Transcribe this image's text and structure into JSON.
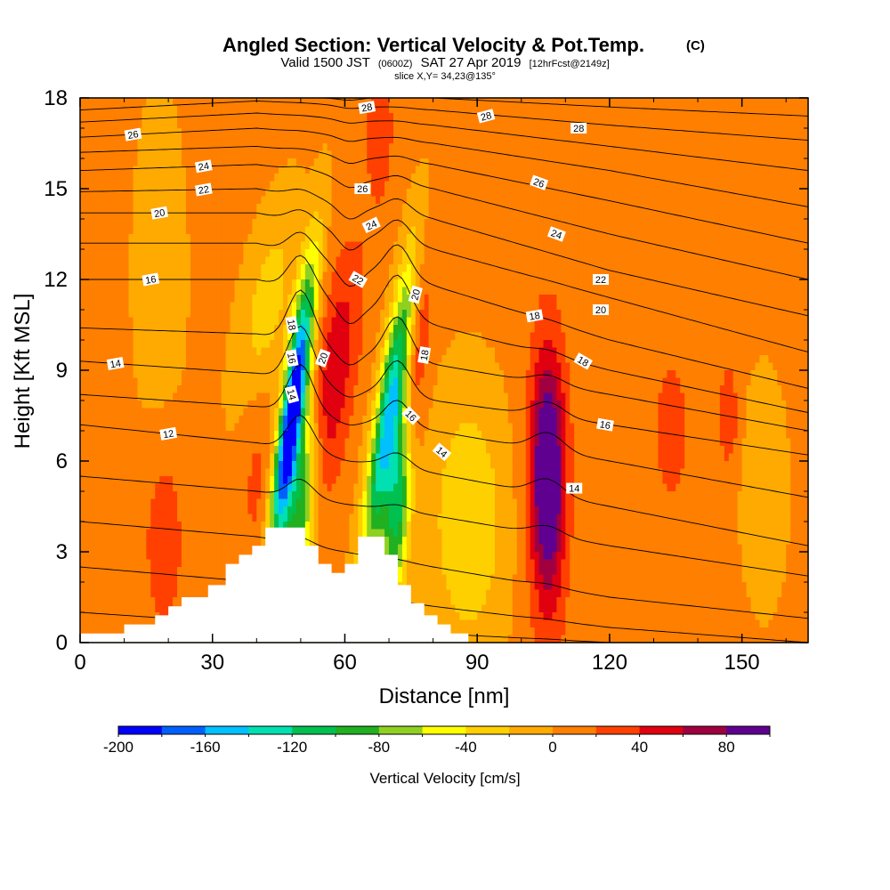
{
  "chart_data": {
    "type": "heatmap",
    "title": "Angled Section: Vertical Velocity & Pot.Temp.",
    "title_suffix": "(C)",
    "subtitle_parts": [
      "Valid 1500 JST",
      "(0600Z)",
      "SAT 27 Apr 2019",
      "[12hrFcst@2149z]"
    ],
    "slice_text": "slice X,Y= 34,23@135°",
    "xlabel": "Distance [nm]",
    "ylabel": "Height [Kft MSL]",
    "xlim": [
      0,
      165
    ],
    "ylim": [
      0,
      18
    ],
    "x_ticks": [
      0,
      30,
      60,
      90,
      120,
      150
    ],
    "y_ticks": [
      0,
      3,
      6,
      9,
      12,
      15,
      18
    ],
    "colorbar": {
      "label": "Vertical Velocity [cm/s]",
      "range": [
        -200,
        100
      ],
      "tick_values": [
        -200,
        -160,
        -120,
        -80,
        -40,
        0,
        40,
        80
      ],
      "colors": [
        "#0000ff",
        "#0060ff",
        "#00c0ff",
        "#00e0b0",
        "#00c050",
        "#20b020",
        "#90d020",
        "#ffff00",
        "#ffd000",
        "#ffaa00",
        "#ff7f00",
        "#ff4000",
        "#e00010",
        "#a00040",
        "#600090"
      ]
    },
    "background_velocity": 5,
    "velocity_cells": [
      {
        "x": 48,
        "y": 7.5,
        "sx": 1.8,
        "sy": 3.2,
        "slope": 0.22,
        "amp": -220
      },
      {
        "x": 50,
        "y": 4.5,
        "sx": 2.4,
        "sy": 2.5,
        "slope": 0.15,
        "amp": -110
      },
      {
        "x": 70,
        "y": 7.5,
        "sx": 2.2,
        "sy": 3.5,
        "slope": 0.25,
        "amp": -150
      },
      {
        "x": 72,
        "y": 4.5,
        "sx": 2.0,
        "sy": 2.2,
        "slope": 0.1,
        "amp": -120
      },
      {
        "x": 88,
        "y": 4.0,
        "sx": 6.0,
        "sy": 3.0,
        "slope": 0.0,
        "amp": -45
      },
      {
        "x": 42,
        "y": 11.0,
        "sx": 4.0,
        "sy": 2.5,
        "slope": 0.3,
        "amp": -35
      },
      {
        "x": 18,
        "y": 12.0,
        "sx": 4.0,
        "sy": 4.0,
        "slope": 0.0,
        "amp": -20
      },
      {
        "x": 57,
        "y": 8.5,
        "sx": 3.5,
        "sy": 3.0,
        "slope": 0.25,
        "amp": 55
      },
      {
        "x": 76,
        "y": 9.5,
        "sx": 2.0,
        "sy": 3.0,
        "slope": 0.15,
        "amp": 40
      },
      {
        "x": 106,
        "y": 5.5,
        "sx": 2.5,
        "sy": 2.5,
        "slope": 0.0,
        "amp": 95
      },
      {
        "x": 106,
        "y": 5.0,
        "sx": 3.6,
        "sy": 4.5,
        "slope": 0.0,
        "amp": 30
      },
      {
        "x": 19,
        "y": 3.5,
        "sx": 3.5,
        "sy": 2.5,
        "slope": 0.0,
        "amp": 28
      },
      {
        "x": 40,
        "y": 5.5,
        "sx": 3.0,
        "sy": 2.5,
        "slope": 0.0,
        "amp": 20
      },
      {
        "x": 134,
        "y": 7.0,
        "sx": 3.0,
        "sy": 2.0,
        "slope": 0.0,
        "amp": 25
      },
      {
        "x": 147,
        "y": 7.5,
        "sx": 1.5,
        "sy": 1.2,
        "slope": 0.0,
        "amp": 35
      },
      {
        "x": 68,
        "y": 17.0,
        "sx": 2.5,
        "sy": 2.0,
        "slope": 0.0,
        "amp": 25
      },
      {
        "x": 155,
        "y": 5.0,
        "sx": 4.0,
        "sy": 3.0,
        "slope": 0.0,
        "amp": -15
      }
    ],
    "terrain": [
      {
        "x": 0,
        "h": 0.3
      },
      {
        "x": 10,
        "h": 0.6
      },
      {
        "x": 17,
        "h": 0.9
      },
      {
        "x": 20,
        "h": 1.2
      },
      {
        "x": 23,
        "h": 1.5
      },
      {
        "x": 29,
        "h": 1.9
      },
      {
        "x": 33,
        "h": 2.6
      },
      {
        "x": 36,
        "h": 2.9
      },
      {
        "x": 39,
        "h": 3.2
      },
      {
        "x": 42,
        "h": 3.8
      },
      {
        "x": 51,
        "h": 3.2
      },
      {
        "x": 54,
        "h": 2.6
      },
      {
        "x": 57,
        "h": 2.3
      },
      {
        "x": 60,
        "h": 2.6
      },
      {
        "x": 63,
        "h": 3.5
      },
      {
        "x": 69,
        "h": 2.9
      },
      {
        "x": 72,
        "h": 1.9
      },
      {
        "x": 75,
        "h": 1.3
      },
      {
        "x": 78,
        "h": 0.9
      },
      {
        "x": 81,
        "h": 0.6
      },
      {
        "x": 84,
        "h": 0.3
      },
      {
        "x": 88,
        "h": 0.0
      },
      {
        "x": 165,
        "h": 0.0
      }
    ],
    "theta_lines": [
      {
        "ys": [
          1.0,
          0.6,
          0.3,
          0.0,
          0.0
        ],
        "label": null
      },
      {
        "ys": [
          2.5,
          2.0,
          1.2,
          0.5,
          0.0
        ],
        "label": null
      },
      {
        "ys": [
          4.0,
          3.5,
          2.5,
          1.5,
          0.8
        ],
        "label": null
      },
      {
        "ys": [
          5.5,
          5.0,
          4.2,
          3.2,
          2.2
        ],
        "label": null
      },
      {
        "ys": [
          7.2,
          6.6,
          5.6,
          4.5,
          3.2
        ],
        "label": "12",
        "lx": 20
      },
      {
        "ys": [
          8.2,
          7.8,
          7.0,
          6.0,
          4.8
        ],
        "label": null
      },
      {
        "ys": [
          9.3,
          8.9,
          8.0,
          7.2,
          6.2
        ],
        "label": "14",
        "lx": 8
      },
      {
        "ys": [
          10.4,
          10.2,
          9.2,
          8.2,
          7.0
        ],
        "label": null
      },
      {
        "ys": [
          12.0,
          12.0,
          10.5,
          9.0,
          7.6
        ],
        "label": "16",
        "lx": 16
      },
      {
        "ys": [
          13.2,
          13.2,
          11.8,
          10.0,
          8.4
        ],
        "label": "18",
        "lx": 103
      },
      {
        "ys": [
          14.2,
          14.2,
          13.0,
          11.4,
          9.6
        ],
        "label": "20",
        "lx": 18
      },
      {
        "ys": [
          14.9,
          15.0,
          14.0,
          12.3,
          10.8
        ],
        "label": "22",
        "lx": 28
      },
      {
        "ys": [
          15.6,
          15.8,
          15.0,
          13.5,
          12.0
        ],
        "label": "24",
        "lx": 28
      },
      {
        "ys": [
          16.2,
          16.4,
          15.8,
          14.6,
          13.2
        ],
        "label": null
      },
      {
        "ys": [
          16.7,
          17.0,
          16.5,
          15.6,
          14.4
        ],
        "label": "26",
        "lx": 12
      },
      {
        "ys": [
          17.2,
          17.5,
          17.1,
          16.4,
          15.6
        ],
        "label": null
      },
      {
        "ys": [
          17.6,
          17.9,
          17.6,
          17.1,
          16.6
        ],
        "label": "28",
        "lx": 65
      },
      {
        "ys": [
          18.0,
          18.0,
          18.0,
          17.7,
          17.4
        ],
        "label": null
      }
    ],
    "extra_labels": [
      {
        "x": 48,
        "y": 10.5,
        "text": "18",
        "rot": 80
      },
      {
        "x": 48,
        "y": 9.4,
        "text": "16",
        "rot": 80
      },
      {
        "x": 48,
        "y": 8.2,
        "text": "14",
        "rot": 75
      },
      {
        "x": 55,
        "y": 9.4,
        "text": "20",
        "rot": -70
      },
      {
        "x": 63,
        "y": 12.0,
        "text": "22",
        "rot": 30
      },
      {
        "x": 66,
        "y": 13.8,
        "text": "24",
        "rot": -25
      },
      {
        "x": 64,
        "y": 15.0,
        "text": "26",
        "rot": 0
      },
      {
        "x": 76,
        "y": 11.5,
        "text": "20",
        "rot": -75
      },
      {
        "x": 78,
        "y": 9.5,
        "text": "18",
        "rot": -80
      },
      {
        "x": 75,
        "y": 7.5,
        "text": "16",
        "rot": 45
      },
      {
        "x": 82,
        "y": 6.3,
        "text": "14",
        "rot": 40
      },
      {
        "x": 92,
        "y": 17.4,
        "text": "28",
        "rot": -15
      },
      {
        "x": 113,
        "y": 17.0,
        "text": "28",
        "rot": 0
      },
      {
        "x": 104,
        "y": 15.2,
        "text": "26",
        "rot": 20
      },
      {
        "x": 108,
        "y": 13.5,
        "text": "24",
        "rot": 20
      },
      {
        "x": 118,
        "y": 12.0,
        "text": "22",
        "rot": 0
      },
      {
        "x": 118,
        "y": 11.0,
        "text": "20",
        "rot": 0
      },
      {
        "x": 114,
        "y": 9.3,
        "text": "18",
        "rot": 30
      },
      {
        "x": 119,
        "y": 7.2,
        "text": "16",
        "rot": 10
      },
      {
        "x": 112,
        "y": 5.1,
        "text": "14",
        "rot": 0
      }
    ]
  }
}
